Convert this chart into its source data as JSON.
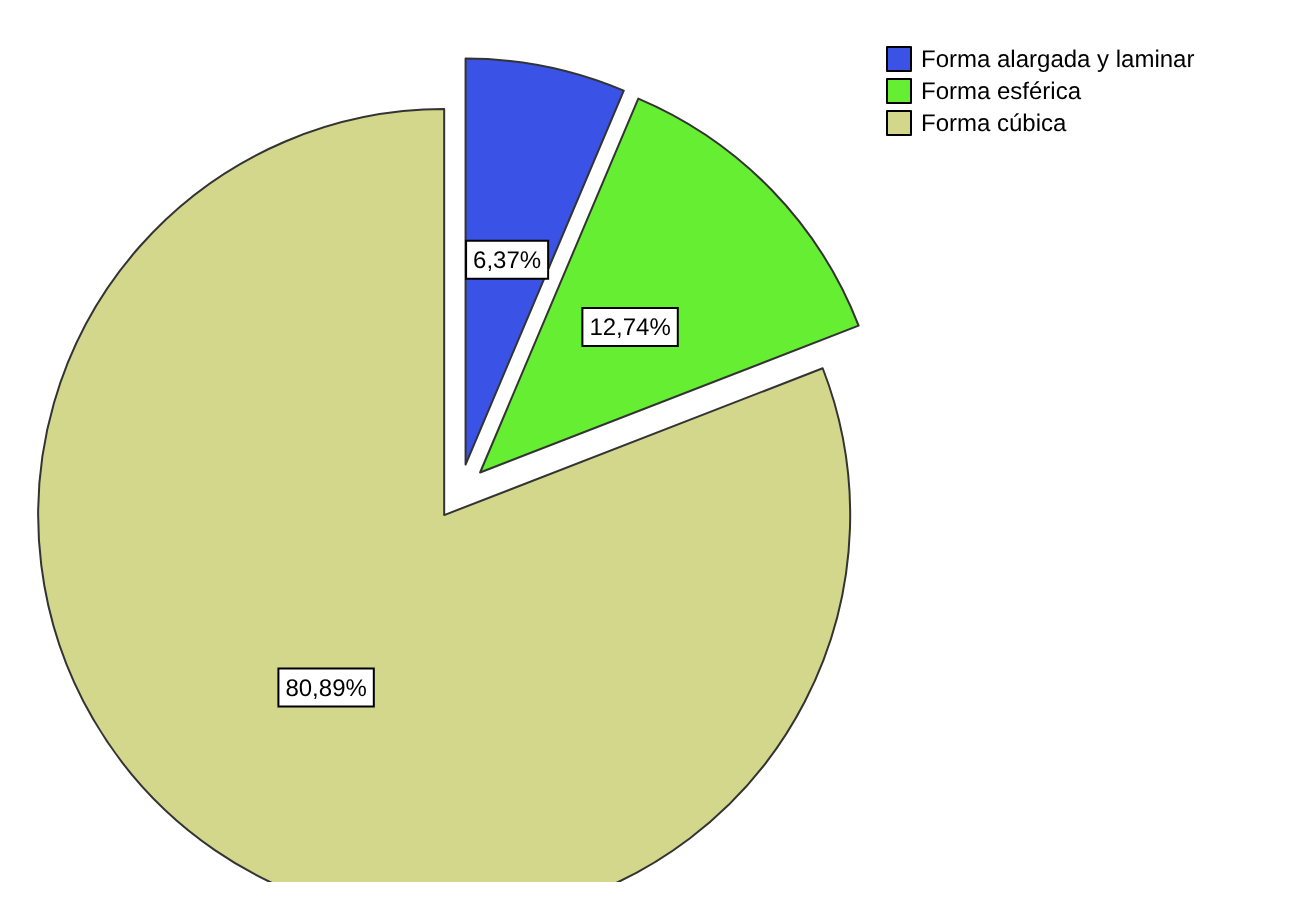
{
  "chart_data": {
    "type": "pie",
    "categories": [
      "Forma alargada y laminar",
      "Forma esférica",
      "Forma cúbica"
    ],
    "values": [
      6.37,
      12.74,
      80.89
    ],
    "colors": [
      "#3a52e6",
      "#66ee33",
      "#d3d78b"
    ],
    "value_labels": [
      "6,37%",
      "12,74%",
      "80,89%"
    ],
    "legend": "top right"
  }
}
